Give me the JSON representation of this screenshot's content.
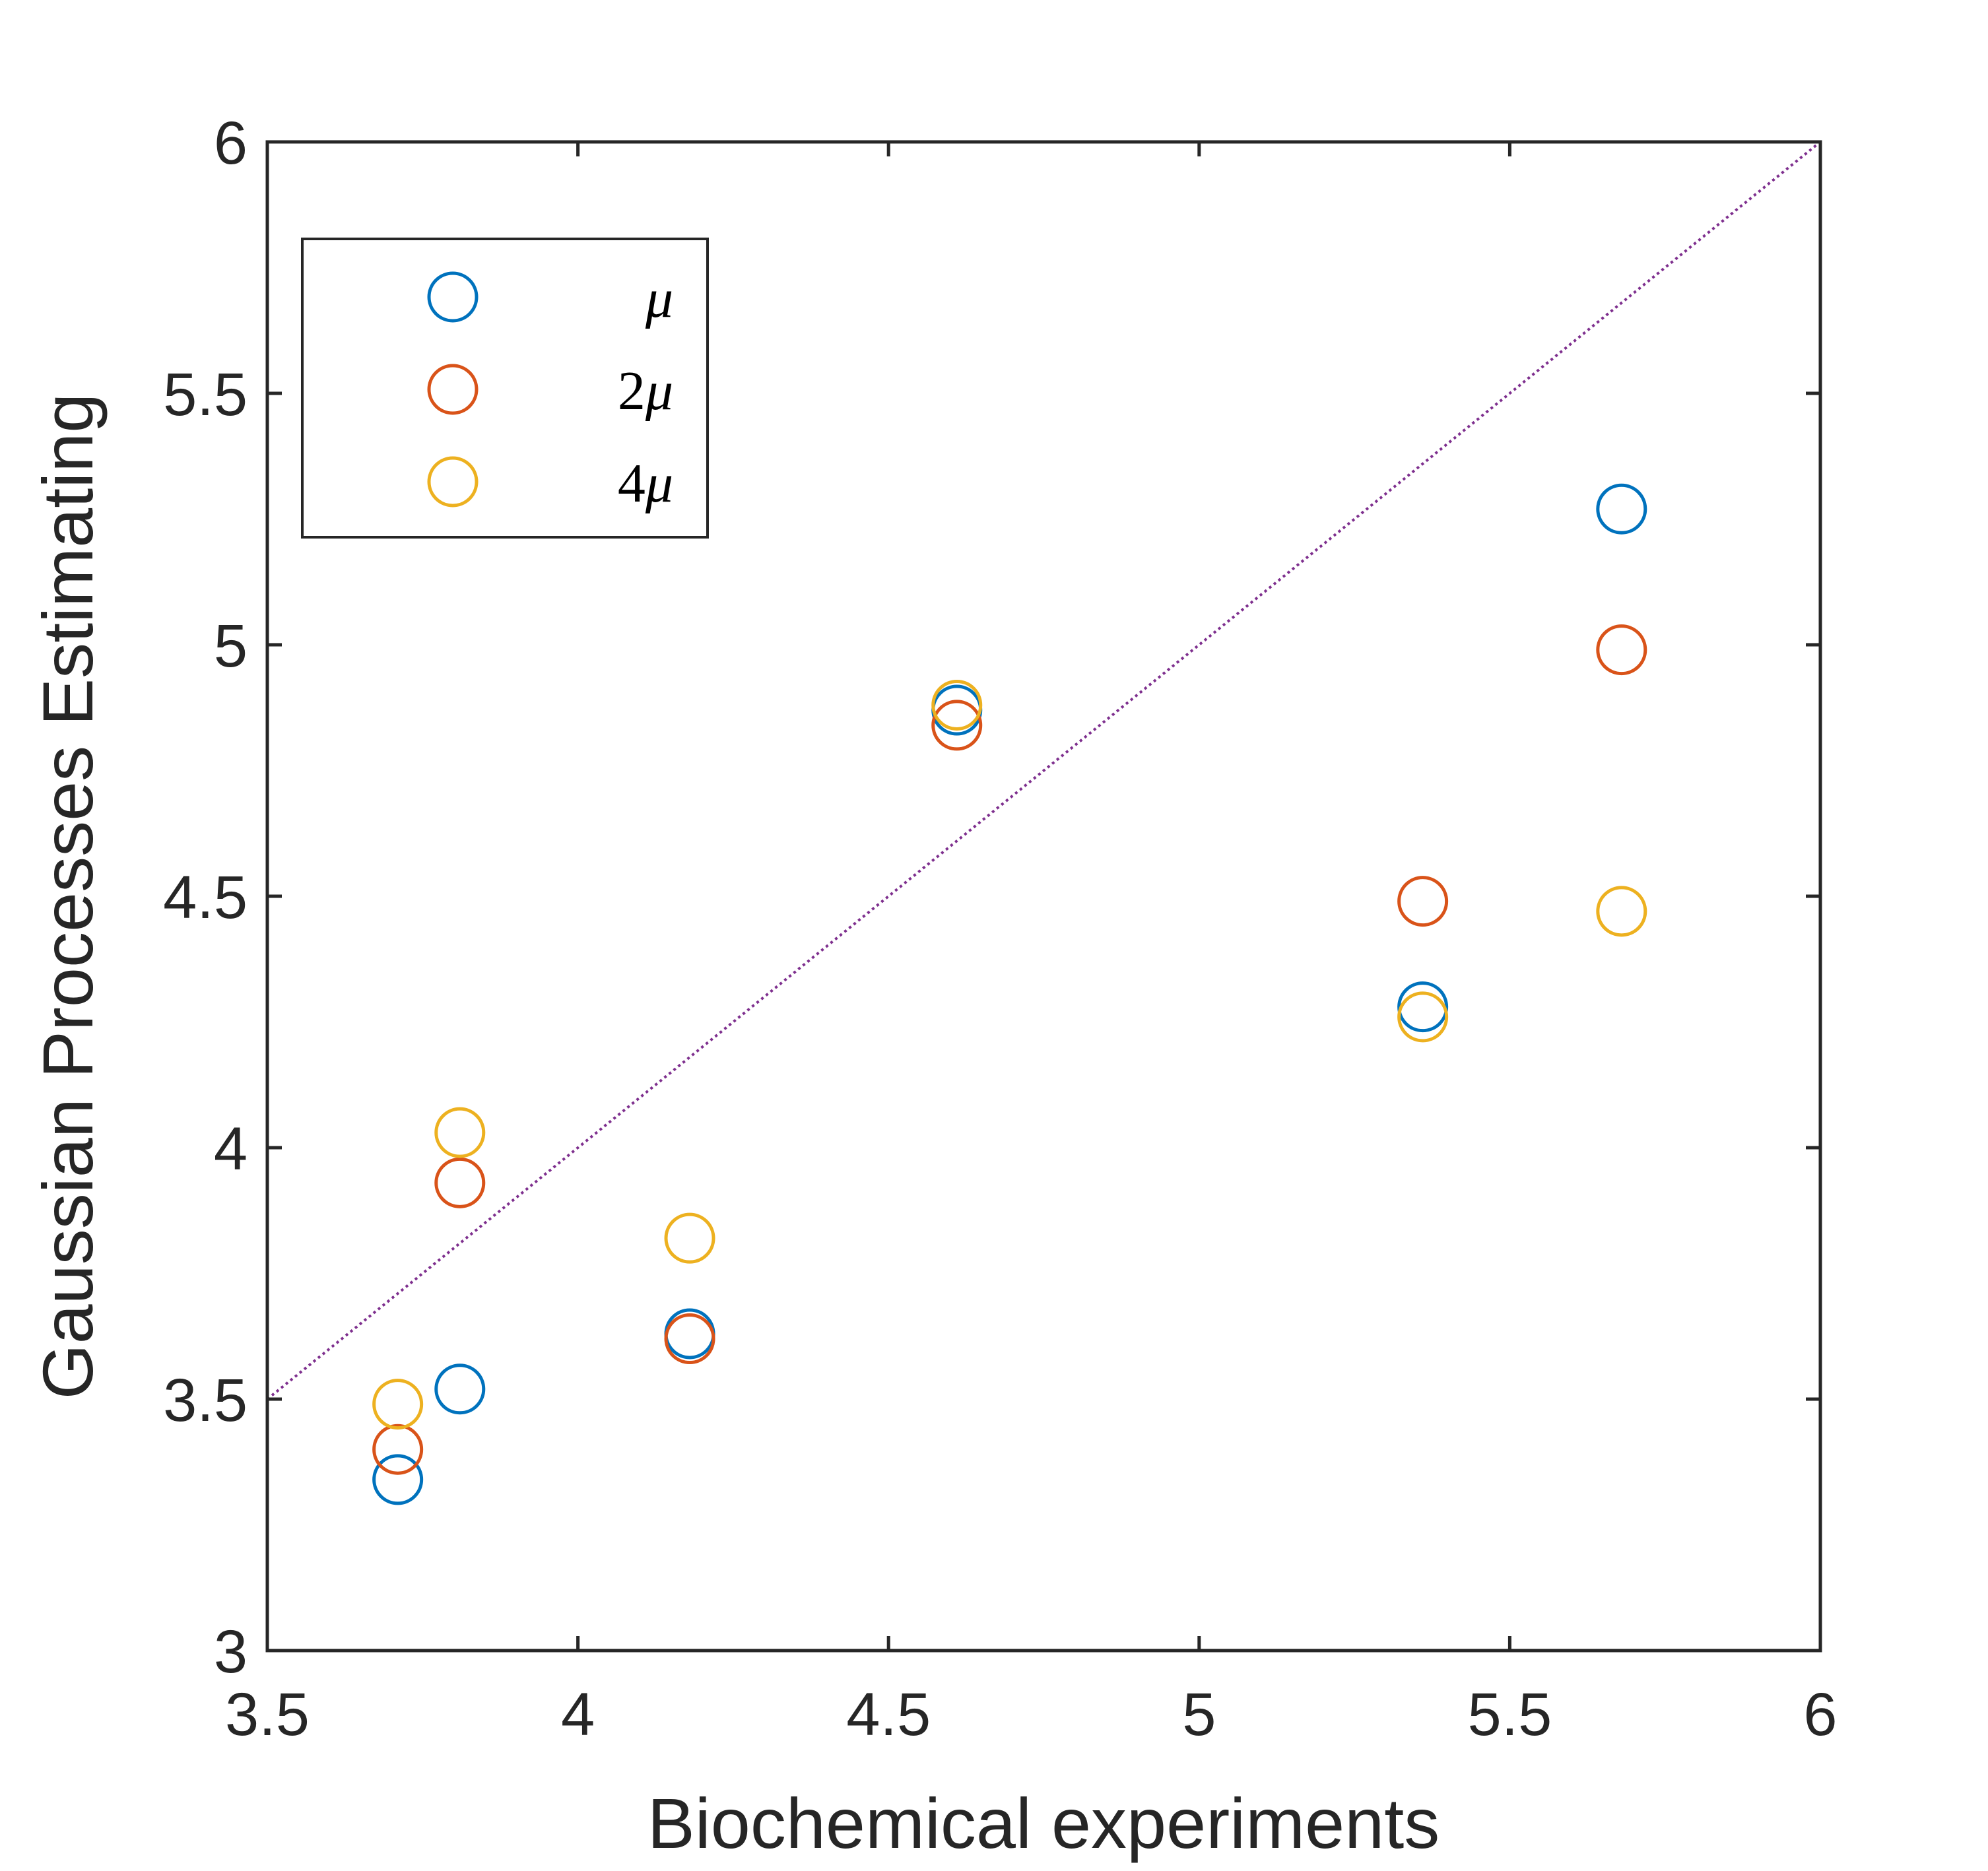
{
  "chart_data": {
    "type": "scatter",
    "xlabel": "Biochemical experiments",
    "ylabel": "Gaussian Processes Estimating",
    "xlim": [
      3.5,
      6
    ],
    "ylim": [
      3,
      6
    ],
    "xticks": [
      "3.5",
      "4",
      "4.5",
      "5",
      "5.5",
      "6"
    ],
    "yticks": [
      "3",
      "3.5",
      "4",
      "4.5",
      "5",
      "5.5",
      "6"
    ],
    "grid": false,
    "legend_position": "top-left",
    "marker": "open-circle",
    "reference_line": {
      "style": "dotted",
      "color": "#7E2F8E",
      "from": [
        3.5,
        3.5
      ],
      "to": [
        6,
        6
      ]
    },
    "series": [
      {
        "name_prefix": "",
        "name_symbol": "μ",
        "color": "#0072BD",
        "points": [
          {
            "x": 3.71,
            "y": 3.34
          },
          {
            "x": 3.81,
            "y": 3.52
          },
          {
            "x": 4.18,
            "y": 3.63
          },
          {
            "x": 4.61,
            "y": 4.87
          },
          {
            "x": 5.36,
            "y": 4.28
          },
          {
            "x": 5.68,
            "y": 5.27
          }
        ]
      },
      {
        "name_prefix": "2",
        "name_symbol": "μ",
        "color": "#D95319",
        "points": [
          {
            "x": 3.71,
            "y": 3.4
          },
          {
            "x": 3.81,
            "y": 3.93
          },
          {
            "x": 4.18,
            "y": 3.62
          },
          {
            "x": 4.61,
            "y": 4.84
          },
          {
            "x": 5.36,
            "y": 4.49
          },
          {
            "x": 5.68,
            "y": 4.99
          }
        ]
      },
      {
        "name_prefix": "4",
        "name_symbol": "μ",
        "color": "#EDB120",
        "points": [
          {
            "x": 3.71,
            "y": 3.49
          },
          {
            "x": 3.81,
            "y": 4.03
          },
          {
            "x": 4.18,
            "y": 3.82
          },
          {
            "x": 4.61,
            "y": 4.88
          },
          {
            "x": 5.36,
            "y": 4.26
          },
          {
            "x": 5.68,
            "y": 4.47
          }
        ]
      }
    ]
  }
}
